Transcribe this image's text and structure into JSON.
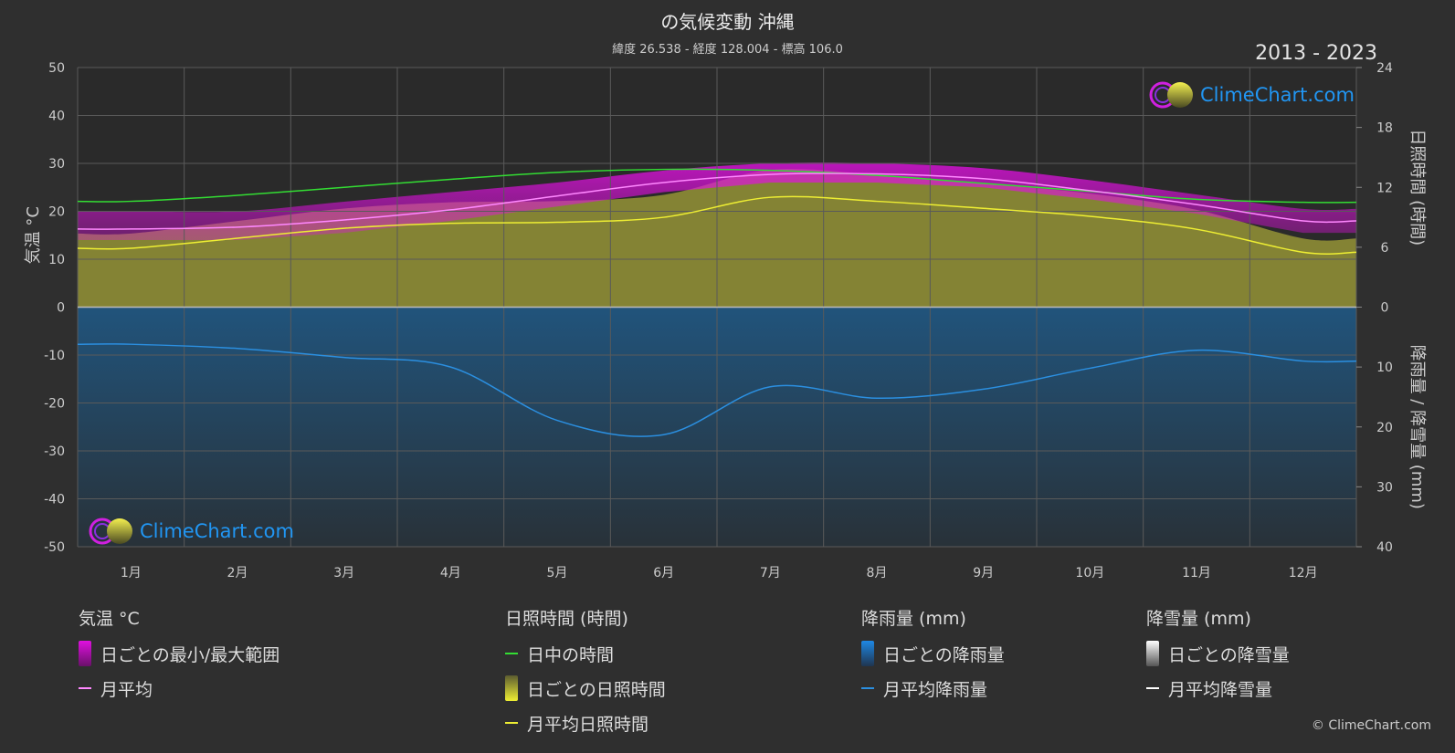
{
  "title": "の気候変動 沖縄",
  "subtitle": "緯度 26.538 - 経度 128.004 - 標高 106.0",
  "years": "2013 - 2023",
  "watermark": "ClimeChart.com",
  "copyright": "© ClimeChart.com",
  "colors": {
    "background": "#2f2f2f",
    "temp_range": "#e010e0",
    "temp_avg": "#ff88ff",
    "daylight": "#33dd33",
    "sunshine_fill": "#b5b43a",
    "sunshine_avg": "#eeee33",
    "rain_fill": "#1f5b8a",
    "rain_avg": "#2b8fe0",
    "snow_avg": "#ffffff"
  },
  "chart_data": {
    "type": "line",
    "categories": [
      "1月",
      "2月",
      "3月",
      "4月",
      "5月",
      "6月",
      "7月",
      "8月",
      "9月",
      "10月",
      "11月",
      "12月"
    ],
    "left_axis": {
      "label": "気温 °C",
      "ylim": [
        -50,
        50
      ],
      "ticks": [
        50,
        40,
        30,
        20,
        10,
        0,
        -10,
        -20,
        -30,
        -40,
        -50
      ]
    },
    "right_axis_top": {
      "label": "日照時間 (時間)",
      "ylim": [
        0,
        24
      ],
      "ticks": [
        24,
        18,
        12,
        6,
        0
      ]
    },
    "right_axis_bottom": {
      "label": "降雨量 / 降雪量 (mm)",
      "ylim": [
        0,
        40
      ],
      "ticks": [
        0,
        10,
        20,
        30,
        40
      ]
    },
    "grid": true,
    "series": [
      {
        "name": "日中の時間",
        "axis": "sunshine_hours",
        "values": [
          10.6,
          11.2,
          12.0,
          12.8,
          13.5,
          13.8,
          13.7,
          13.2,
          12.4,
          11.6,
          10.8,
          10.5
        ]
      },
      {
        "name": "月平均日照時間",
        "axis": "sunshine_hours",
        "values": [
          5.9,
          6.9,
          7.9,
          8.4,
          8.5,
          9.0,
          11.0,
          10.6,
          9.9,
          9.1,
          7.8,
          5.5
        ]
      },
      {
        "name": "月平均",
        "axis": "temperature_c",
        "values": [
          16.3,
          16.7,
          18.2,
          20.3,
          23.2,
          26.0,
          27.7,
          27.8,
          26.8,
          24.3,
          21.4,
          18.0
        ]
      },
      {
        "name": "日ごとの最小/最大範囲 (min)",
        "axis": "temperature_c",
        "values": [
          14.0,
          14.0,
          15.5,
          18.0,
          21.0,
          24.0,
          26.0,
          26.0,
          25.0,
          22.5,
          19.5,
          15.5
        ]
      },
      {
        "name": "日ごとの最小/最大範囲 (max)",
        "axis": "temperature_c",
        "values": [
          20.0,
          20.0,
          22.0,
          24.0,
          26.0,
          28.5,
          30.0,
          30.0,
          29.0,
          26.5,
          23.5,
          20.5
        ]
      },
      {
        "name": "月平均降雨量",
        "axis": "precipitation_mm",
        "values": [
          6.2,
          6.9,
          8.4,
          10.0,
          18.9,
          21.3,
          13.3,
          15.2,
          13.7,
          10.2,
          7.2,
          9.0
        ]
      },
      {
        "name": "月平均降雪量",
        "axis": "precipitation_mm",
        "values": [
          0,
          0,
          0,
          0,
          0,
          0,
          0,
          0,
          0,
          0,
          0,
          0
        ]
      }
    ]
  },
  "legend": {
    "temp": {
      "header": "気温 °C",
      "range": "日ごとの最小/最大範囲",
      "avg": "月平均"
    },
    "sun": {
      "header": "日照時間 (時間)",
      "daylight": "日中の時間",
      "daily": "日ごとの日照時間",
      "avg": "月平均日照時間"
    },
    "rain": {
      "header": "降雨量 (mm)",
      "daily": "日ごとの降雨量",
      "avg": "月平均降雨量"
    },
    "snow": {
      "header": "降雪量 (mm)",
      "daily": "日ごとの降雪量",
      "avg": "月平均降雪量"
    }
  }
}
